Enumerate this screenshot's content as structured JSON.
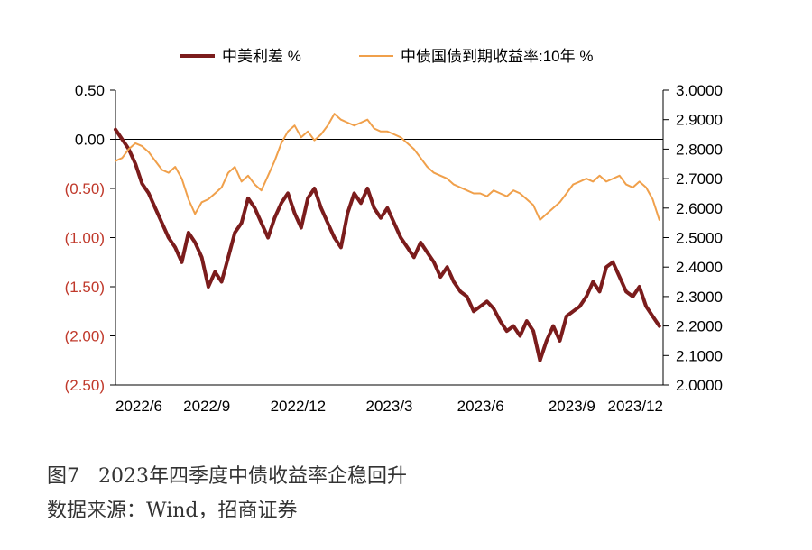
{
  "figure": {
    "title": "图7   2023年四季度中债收益率企稳回升",
    "source": "数据来源：Wind，招商证券"
  },
  "colors": {
    "spread": "#7b1c1c",
    "yield": "#f0a04b",
    "negative_label": "#c0392b",
    "positive_label": "#000000"
  },
  "chart_data": {
    "type": "line",
    "legend_position": "top",
    "x_tick_labels": [
      "2022/6",
      "2022/9",
      "2022/12",
      "2023/3",
      "2023/6",
      "2023/9",
      "2023/12"
    ],
    "y_left": {
      "range": [
        -2.5,
        0.5
      ],
      "ticks": [
        0.5,
        0.0,
        -0.5,
        -1.0,
        -1.5,
        -2.0,
        -2.5
      ],
      "tick_labels": [
        "0.50",
        "0.00",
        "(0.50)",
        "(1.00)",
        "(1.50)",
        "(2.00)",
        "(2.50)"
      ]
    },
    "y_right": {
      "range": [
        2.0,
        3.0
      ],
      "ticks": [
        3.0,
        2.9,
        2.8,
        2.7,
        2.6,
        2.5,
        2.4,
        2.3,
        2.2,
        2.1,
        2.0
      ],
      "tick_labels": [
        "3.0000",
        "2.9000",
        "2.8000",
        "2.7000",
        "2.6000",
        "2.5000",
        "2.4000",
        "2.3000",
        "2.2000",
        "2.1000",
        "2.0000"
      ]
    },
    "zero_line": 0.0,
    "series": [
      {
        "name": "中美利差 %",
        "axis": "left",
        "x": [
          "2022-06-01",
          "2022-06-08",
          "2022-06-15",
          "2022-06-22",
          "2022-06-29",
          "2022-07-06",
          "2022-07-13",
          "2022-07-20",
          "2022-07-27",
          "2022-08-03",
          "2022-08-10",
          "2022-08-17",
          "2022-08-24",
          "2022-08-31",
          "2022-09-07",
          "2022-09-14",
          "2022-09-21",
          "2022-09-28",
          "2022-10-05",
          "2022-10-12",
          "2022-10-19",
          "2022-10-26",
          "2022-11-02",
          "2022-11-09",
          "2022-11-16",
          "2022-11-23",
          "2022-11-30",
          "2022-12-07",
          "2022-12-14",
          "2022-12-21",
          "2022-12-28",
          "2023-01-04",
          "2023-01-11",
          "2023-01-18",
          "2023-01-25",
          "2023-02-01",
          "2023-02-08",
          "2023-02-15",
          "2023-02-22",
          "2023-03-01",
          "2023-03-08",
          "2023-03-15",
          "2023-03-22",
          "2023-03-29",
          "2023-04-05",
          "2023-04-12",
          "2023-04-19",
          "2023-04-26",
          "2023-05-03",
          "2023-05-10",
          "2023-05-17",
          "2023-05-24",
          "2023-05-31",
          "2023-06-07",
          "2023-06-14",
          "2023-06-21",
          "2023-06-28",
          "2023-07-05",
          "2023-07-12",
          "2023-07-19",
          "2023-07-26",
          "2023-08-02",
          "2023-08-09",
          "2023-08-16",
          "2023-08-23",
          "2023-08-30",
          "2023-09-06",
          "2023-09-13",
          "2023-09-20",
          "2023-09-27",
          "2023-10-04",
          "2023-10-11",
          "2023-10-18",
          "2023-10-25",
          "2023-11-01",
          "2023-11-08",
          "2023-11-15",
          "2023-11-22",
          "2023-11-29",
          "2023-12-06",
          "2023-12-13",
          "2023-12-20",
          "2023-12-27"
        ],
        "values": [
          0.1,
          0.0,
          -0.1,
          -0.25,
          -0.45,
          -0.55,
          -0.7,
          -0.85,
          -1.0,
          -1.1,
          -1.25,
          -0.95,
          -1.05,
          -1.2,
          -1.5,
          -1.35,
          -1.45,
          -1.2,
          -0.95,
          -0.85,
          -0.6,
          -0.7,
          -0.85,
          -1.0,
          -0.8,
          -0.65,
          -0.55,
          -0.75,
          -0.9,
          -0.6,
          -0.5,
          -0.7,
          -0.85,
          -1.0,
          -1.1,
          -0.75,
          -0.55,
          -0.65,
          -0.5,
          -0.7,
          -0.8,
          -0.7,
          -0.85,
          -1.0,
          -1.1,
          -1.2,
          -1.05,
          -1.15,
          -1.25,
          -1.4,
          -1.3,
          -1.45,
          -1.55,
          -1.6,
          -1.75,
          -1.7,
          -1.65,
          -1.72,
          -1.85,
          -1.95,
          -1.9,
          -2.0,
          -1.85,
          -1.95,
          -2.25,
          -2.05,
          -1.9,
          -2.05,
          -1.8,
          -1.75,
          -1.7,
          -1.6,
          -1.45,
          -1.55,
          -1.3,
          -1.25,
          -1.4,
          -1.55,
          -1.6,
          -1.5,
          -1.7,
          -1.8,
          -1.9
        ]
      },
      {
        "name": "中债国债到期收益率:10年 %",
        "axis": "right",
        "x": [
          "2022-06-01",
          "2022-06-08",
          "2022-06-15",
          "2022-06-22",
          "2022-06-29",
          "2022-07-06",
          "2022-07-13",
          "2022-07-20",
          "2022-07-27",
          "2022-08-03",
          "2022-08-10",
          "2022-08-17",
          "2022-08-24",
          "2022-08-31",
          "2022-09-07",
          "2022-09-14",
          "2022-09-21",
          "2022-09-28",
          "2022-10-05",
          "2022-10-12",
          "2022-10-19",
          "2022-10-26",
          "2022-11-02",
          "2022-11-09",
          "2022-11-16",
          "2022-11-23",
          "2022-11-30",
          "2022-12-07",
          "2022-12-14",
          "2022-12-21",
          "2022-12-28",
          "2023-01-04",
          "2023-01-11",
          "2023-01-18",
          "2023-01-25",
          "2023-02-01",
          "2023-02-08",
          "2023-02-15",
          "2023-02-22",
          "2023-03-01",
          "2023-03-08",
          "2023-03-15",
          "2023-03-22",
          "2023-03-29",
          "2023-04-05",
          "2023-04-12",
          "2023-04-19",
          "2023-04-26",
          "2023-05-03",
          "2023-05-10",
          "2023-05-17",
          "2023-05-24",
          "2023-05-31",
          "2023-06-07",
          "2023-06-14",
          "2023-06-21",
          "2023-06-28",
          "2023-07-05",
          "2023-07-12",
          "2023-07-19",
          "2023-07-26",
          "2023-08-02",
          "2023-08-09",
          "2023-08-16",
          "2023-08-23",
          "2023-08-30",
          "2023-09-06",
          "2023-09-13",
          "2023-09-20",
          "2023-09-27",
          "2023-10-04",
          "2023-10-11",
          "2023-10-18",
          "2023-10-25",
          "2023-11-01",
          "2023-11-08",
          "2023-11-15",
          "2023-11-22",
          "2023-11-29",
          "2023-12-06",
          "2023-12-13",
          "2023-12-20",
          "2023-12-27"
        ],
        "values": [
          2.76,
          2.77,
          2.8,
          2.82,
          2.81,
          2.79,
          2.76,
          2.73,
          2.72,
          2.74,
          2.7,
          2.63,
          2.58,
          2.62,
          2.63,
          2.65,
          2.67,
          2.72,
          2.74,
          2.69,
          2.71,
          2.68,
          2.66,
          2.71,
          2.76,
          2.82,
          2.86,
          2.88,
          2.84,
          2.86,
          2.83,
          2.85,
          2.88,
          2.92,
          2.9,
          2.89,
          2.88,
          2.89,
          2.9,
          2.87,
          2.86,
          2.86,
          2.85,
          2.84,
          2.82,
          2.8,
          2.77,
          2.74,
          2.72,
          2.71,
          2.7,
          2.68,
          2.67,
          2.66,
          2.65,
          2.65,
          2.64,
          2.66,
          2.65,
          2.64,
          2.66,
          2.65,
          2.63,
          2.61,
          2.56,
          2.58,
          2.6,
          2.62,
          2.65,
          2.68,
          2.69,
          2.7,
          2.69,
          2.71,
          2.69,
          2.7,
          2.71,
          2.68,
          2.67,
          2.69,
          2.67,
          2.63,
          2.56
        ]
      }
    ]
  }
}
